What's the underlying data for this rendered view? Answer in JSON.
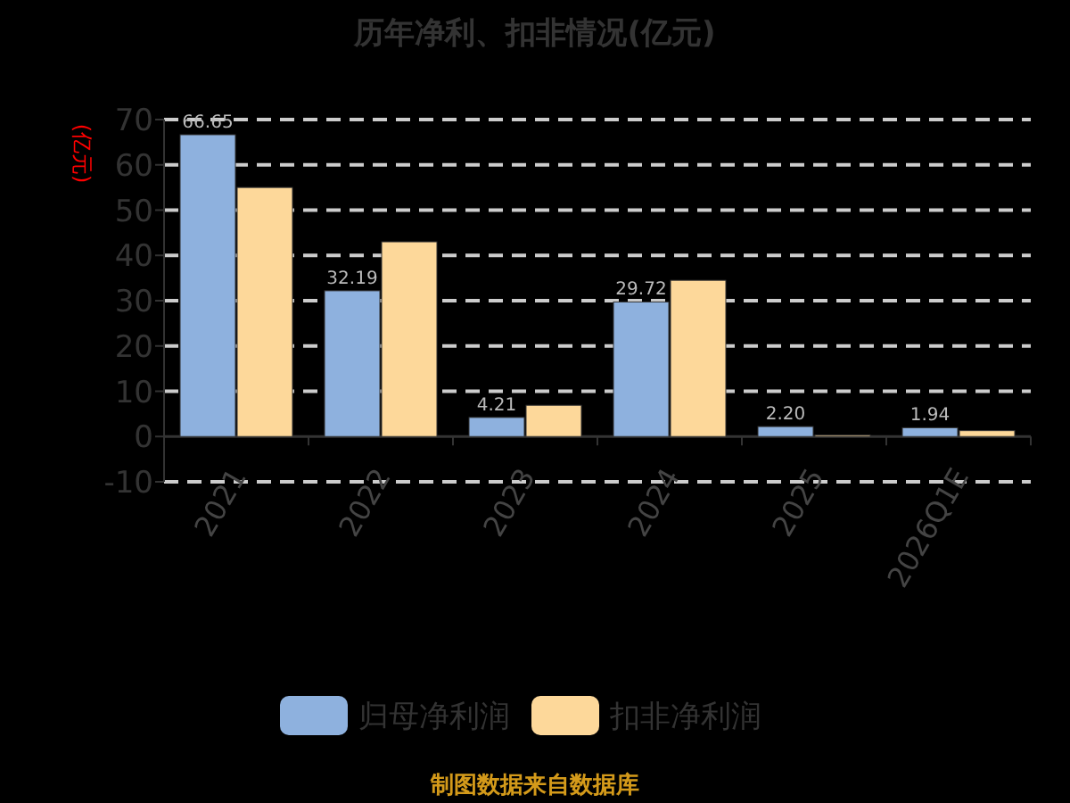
{
  "chart_data": {
    "type": "bar",
    "title": "历年净利、扣非情况(亿元)",
    "ylabel": "(亿元)",
    "categories": [
      "2021",
      "2022",
      "2023",
      "2024",
      "2025",
      "2026Q1E"
    ],
    "series": [
      {
        "name": "归母净利润",
        "color": "#8eb1de",
        "values": [
          66.65,
          32.19,
          4.21,
          29.72,
          2.2,
          1.94
        ],
        "value_labels": [
          "66.65",
          "32.19",
          "4.21",
          "29.72",
          "2.20",
          "1.94"
        ]
      },
      {
        "name": "扣非净利润",
        "color": "#fdd89a",
        "values": [
          55,
          43,
          6.9,
          34.5,
          0.3,
          1.3
        ]
      }
    ],
    "ylim": [
      -10,
      70
    ],
    "yticks": [
      -10,
      0,
      10,
      20,
      30,
      40,
      50,
      60,
      70
    ],
    "grid": "y",
    "legend": "bottom",
    "annotations": [
      "制图数据来自数据库"
    ]
  }
}
